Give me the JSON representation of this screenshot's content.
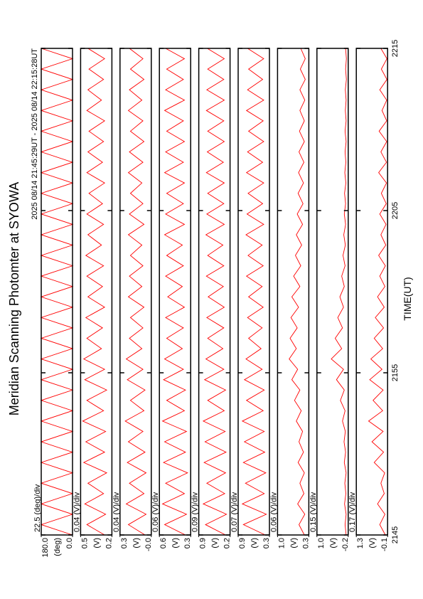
{
  "title": "Meridian Scanning Photomter at SYOWA",
  "subtitle": "2025 08/14 21:45:29UT - 2025 08/14 22:15:28UT",
  "x_label": "TIME(UT)",
  "xlim": [
    0,
    30
  ],
  "xticks": [
    {
      "value": 0,
      "label": "2145"
    },
    {
      "value": 10,
      "label": "2155"
    },
    {
      "value": 20,
      "label": "2205"
    },
    {
      "value": 30,
      "label": "2215"
    }
  ],
  "chart_data": [
    {
      "type": "line",
      "scale_label": "22.5 (deg)/div",
      "y_label": "(deg)",
      "color": "#ff0000",
      "ylim": [
        0,
        180
      ],
      "yticks": [
        {
          "value": 0,
          "label": "0.0"
        },
        {
          "value": 180,
          "label": "180.0"
        }
      ],
      "values": [
        0,
        180,
        0,
        180,
        0,
        180,
        0,
        180,
        0,
        180,
        0,
        180,
        0,
        180,
        0,
        180,
        0,
        180,
        0,
        180,
        0,
        180,
        0,
        180,
        0,
        180,
        0,
        180,
        0,
        180,
        0,
        180,
        0,
        180,
        0,
        180,
        0,
        180,
        0,
        180,
        0,
        180,
        0,
        180,
        0,
        180,
        0,
        180
      ]
    },
    {
      "type": "line",
      "scale_label": "0.04 (V)/div",
      "y_label": "(V)",
      "color": "#ff0000",
      "ylim": [
        0.2,
        0.5
      ],
      "yticks": [
        0.2,
        0.5
      ],
      "values": [
        0.27,
        0.44,
        0.26,
        0.46,
        0.28,
        0.43,
        0.25,
        0.47,
        0.27,
        0.45,
        0.26,
        0.48,
        0.28,
        0.44,
        0.25,
        0.46,
        0.27,
        0.47,
        0.3,
        0.44,
        0.29,
        0.45,
        0.27,
        0.43,
        0.29,
        0.44,
        0.28,
        0.45,
        0.3,
        0.43,
        0.28,
        0.44,
        0.29,
        0.42,
        0.27,
        0.44,
        0.29,
        0.43,
        0.28,
        0.42,
        0.27,
        0.44,
        0.3,
        0.43,
        0.28,
        0.42,
        0.27,
        0.43
      ]
    },
    {
      "type": "line",
      "scale_label": "0.04 (V)/div",
      "y_label": "(V)",
      "color": "#ff0000",
      "ylim": [
        0,
        0.3
      ],
      "yticks": [
        {
          "value": 0,
          "label": "-0.0"
        },
        0.3
      ],
      "values": [
        0.06,
        0.22,
        0.05,
        0.24,
        0.07,
        0.21,
        0.05,
        0.23,
        0.06,
        0.22,
        0.08,
        0.25,
        0.07,
        0.2,
        0.06,
        0.23,
        0.08,
        0.24,
        0.09,
        0.21,
        0.08,
        0.2,
        0.07,
        0.22,
        0.09,
        0.21,
        0.08,
        0.2,
        0.09,
        0.22,
        0.07,
        0.21,
        0.08,
        0.2,
        0.09,
        0.22,
        0.08,
        0.21,
        0.07,
        0.2,
        0.08,
        0.22,
        0.09,
        0.21,
        0.07,
        0.2,
        0.08,
        0.21
      ]
    },
    {
      "type": "line",
      "scale_label": "0.06 (V)/div",
      "y_label": "(V)",
      "color": "#ff0000",
      "ylim": [
        0.3,
        0.6
      ],
      "yticks": [
        0.3,
        0.6
      ],
      "values": [
        0.35,
        0.55,
        0.34,
        0.57,
        0.36,
        0.54,
        0.33,
        0.56,
        0.35,
        0.55,
        0.34,
        0.57,
        0.36,
        0.53,
        0.35,
        0.56,
        0.37,
        0.55,
        0.38,
        0.53,
        0.37,
        0.54,
        0.36,
        0.52,
        0.38,
        0.54,
        0.37,
        0.53,
        0.38,
        0.55,
        0.36,
        0.54,
        0.37,
        0.53,
        0.36,
        0.55,
        0.37,
        0.54,
        0.36,
        0.53,
        0.37,
        0.55,
        0.36,
        0.54,
        0.37,
        0.53,
        0.36,
        0.54
      ]
    },
    {
      "type": "line",
      "scale_label": "0.09 (V)/div",
      "y_label": "(V)",
      "color": "#ff0000",
      "ylim": [
        0.2,
        0.9
      ],
      "yticks": [
        0.2,
        0.9
      ],
      "values": [
        0.3,
        0.75,
        0.28,
        0.8,
        0.32,
        0.72,
        0.3,
        0.78,
        0.29,
        0.76,
        0.31,
        0.8,
        0.33,
        0.7,
        0.3,
        0.77,
        0.34,
        0.74,
        0.36,
        0.7,
        0.34,
        0.72,
        0.33,
        0.69,
        0.35,
        0.73,
        0.34,
        0.7,
        0.36,
        0.74,
        0.33,
        0.72,
        0.34,
        0.7,
        0.33,
        0.73,
        0.35,
        0.71,
        0.33,
        0.7,
        0.34,
        0.73,
        0.33,
        0.72,
        0.34,
        0.7,
        0.33,
        0.71
      ]
    },
    {
      "type": "line",
      "scale_label": "0.07 (V)/div",
      "y_label": "(V)",
      "color": "#ff0000",
      "ylim": [
        0.3,
        0.9
      ],
      "yticks": [
        0.3,
        0.9
      ],
      "values": [
        0.38,
        0.8,
        0.36,
        0.82,
        0.4,
        0.76,
        0.37,
        0.8,
        0.39,
        0.78,
        0.4,
        0.82,
        0.42,
        0.74,
        0.4,
        0.78,
        0.44,
        0.75,
        0.46,
        0.7,
        0.44,
        0.72,
        0.42,
        0.7,
        0.44,
        0.74,
        0.42,
        0.71,
        0.44,
        0.75,
        0.41,
        0.73,
        0.43,
        0.71,
        0.41,
        0.74,
        0.43,
        0.72,
        0.41,
        0.7,
        0.42,
        0.74,
        0.41,
        0.72,
        0.43,
        0.7,
        0.41,
        0.72
      ]
    },
    {
      "type": "line",
      "scale_label": "0.06 (V)/div",
      "y_label": "(V)",
      "color": "#ff0000",
      "ylim": [
        0.3,
        1.0
      ],
      "yticks": [
        0.3,
        {
          "value": 1.0,
          "label": "1.0"
        }
      ],
      "values": [
        0.4,
        0.52,
        0.39,
        0.55,
        0.41,
        0.5,
        0.4,
        0.54,
        0.42,
        0.52,
        0.44,
        0.58,
        0.47,
        0.62,
        0.5,
        0.68,
        0.55,
        0.74,
        0.58,
        0.72,
        0.56,
        0.7,
        0.53,
        0.68,
        0.5,
        0.64,
        0.48,
        0.6,
        0.46,
        0.58,
        0.44,
        0.56,
        0.43,
        0.54,
        0.42,
        0.53,
        0.41,
        0.52,
        0.4,
        0.51,
        0.4,
        0.5,
        0.39,
        0.5,
        0.38,
        0.49,
        0.38,
        0.48
      ]
    },
    {
      "type": "line",
      "scale_label": "0.15 (V)/div",
      "y_label": "(V)",
      "color": "#ff0000",
      "ylim": [
        -0.2,
        1.0
      ],
      "yticks": [
        -0.2,
        {
          "value": 1.0,
          "label": "1.0"
        }
      ],
      "values": [
        -0.12,
        -0.08,
        -0.12,
        -0.06,
        -0.11,
        -0.07,
        -0.12,
        -0.05,
        -0.1,
        -0.04,
        -0.09,
        0.02,
        -0.08,
        0.1,
        -0.05,
        0.25,
        -0.02,
        0.45,
        0.05,
        0.3,
        0.02,
        0.2,
        -0.02,
        0.12,
        -0.05,
        0.05,
        -0.08,
        0.0,
        -0.09,
        -0.03,
        -0.1,
        -0.05,
        -0.1,
        -0.06,
        -0.11,
        -0.07,
        -0.11,
        -0.08,
        -0.12,
        -0.08,
        -0.12,
        -0.09,
        -0.12,
        -0.09,
        -0.13,
        -0.1,
        -0.13,
        -0.1
      ]
    },
    {
      "type": "line",
      "scale_label": "0.17 (V)/div",
      "y_label": "(V)",
      "color": "#ff0000",
      "ylim": [
        -0.1,
        1.3
      ],
      "yticks": [
        -0.1,
        1.3
      ],
      "values": [
        0.0,
        0.25,
        0.02,
        0.35,
        0.05,
        0.2,
        0.03,
        0.5,
        0.08,
        0.6,
        0.1,
        0.75,
        0.12,
        0.55,
        0.1,
        0.7,
        0.15,
        0.65,
        0.12,
        0.5,
        0.08,
        0.45,
        0.05,
        0.35,
        0.02,
        0.25,
        0.0,
        0.3,
        -0.02,
        0.2,
        -0.03,
        0.25,
        -0.04,
        0.18,
        -0.05,
        0.3,
        -0.05,
        0.2,
        -0.06,
        0.28,
        -0.06,
        0.15,
        -0.06,
        0.25,
        -0.07,
        0.18,
        -0.07,
        0.2
      ]
    }
  ]
}
